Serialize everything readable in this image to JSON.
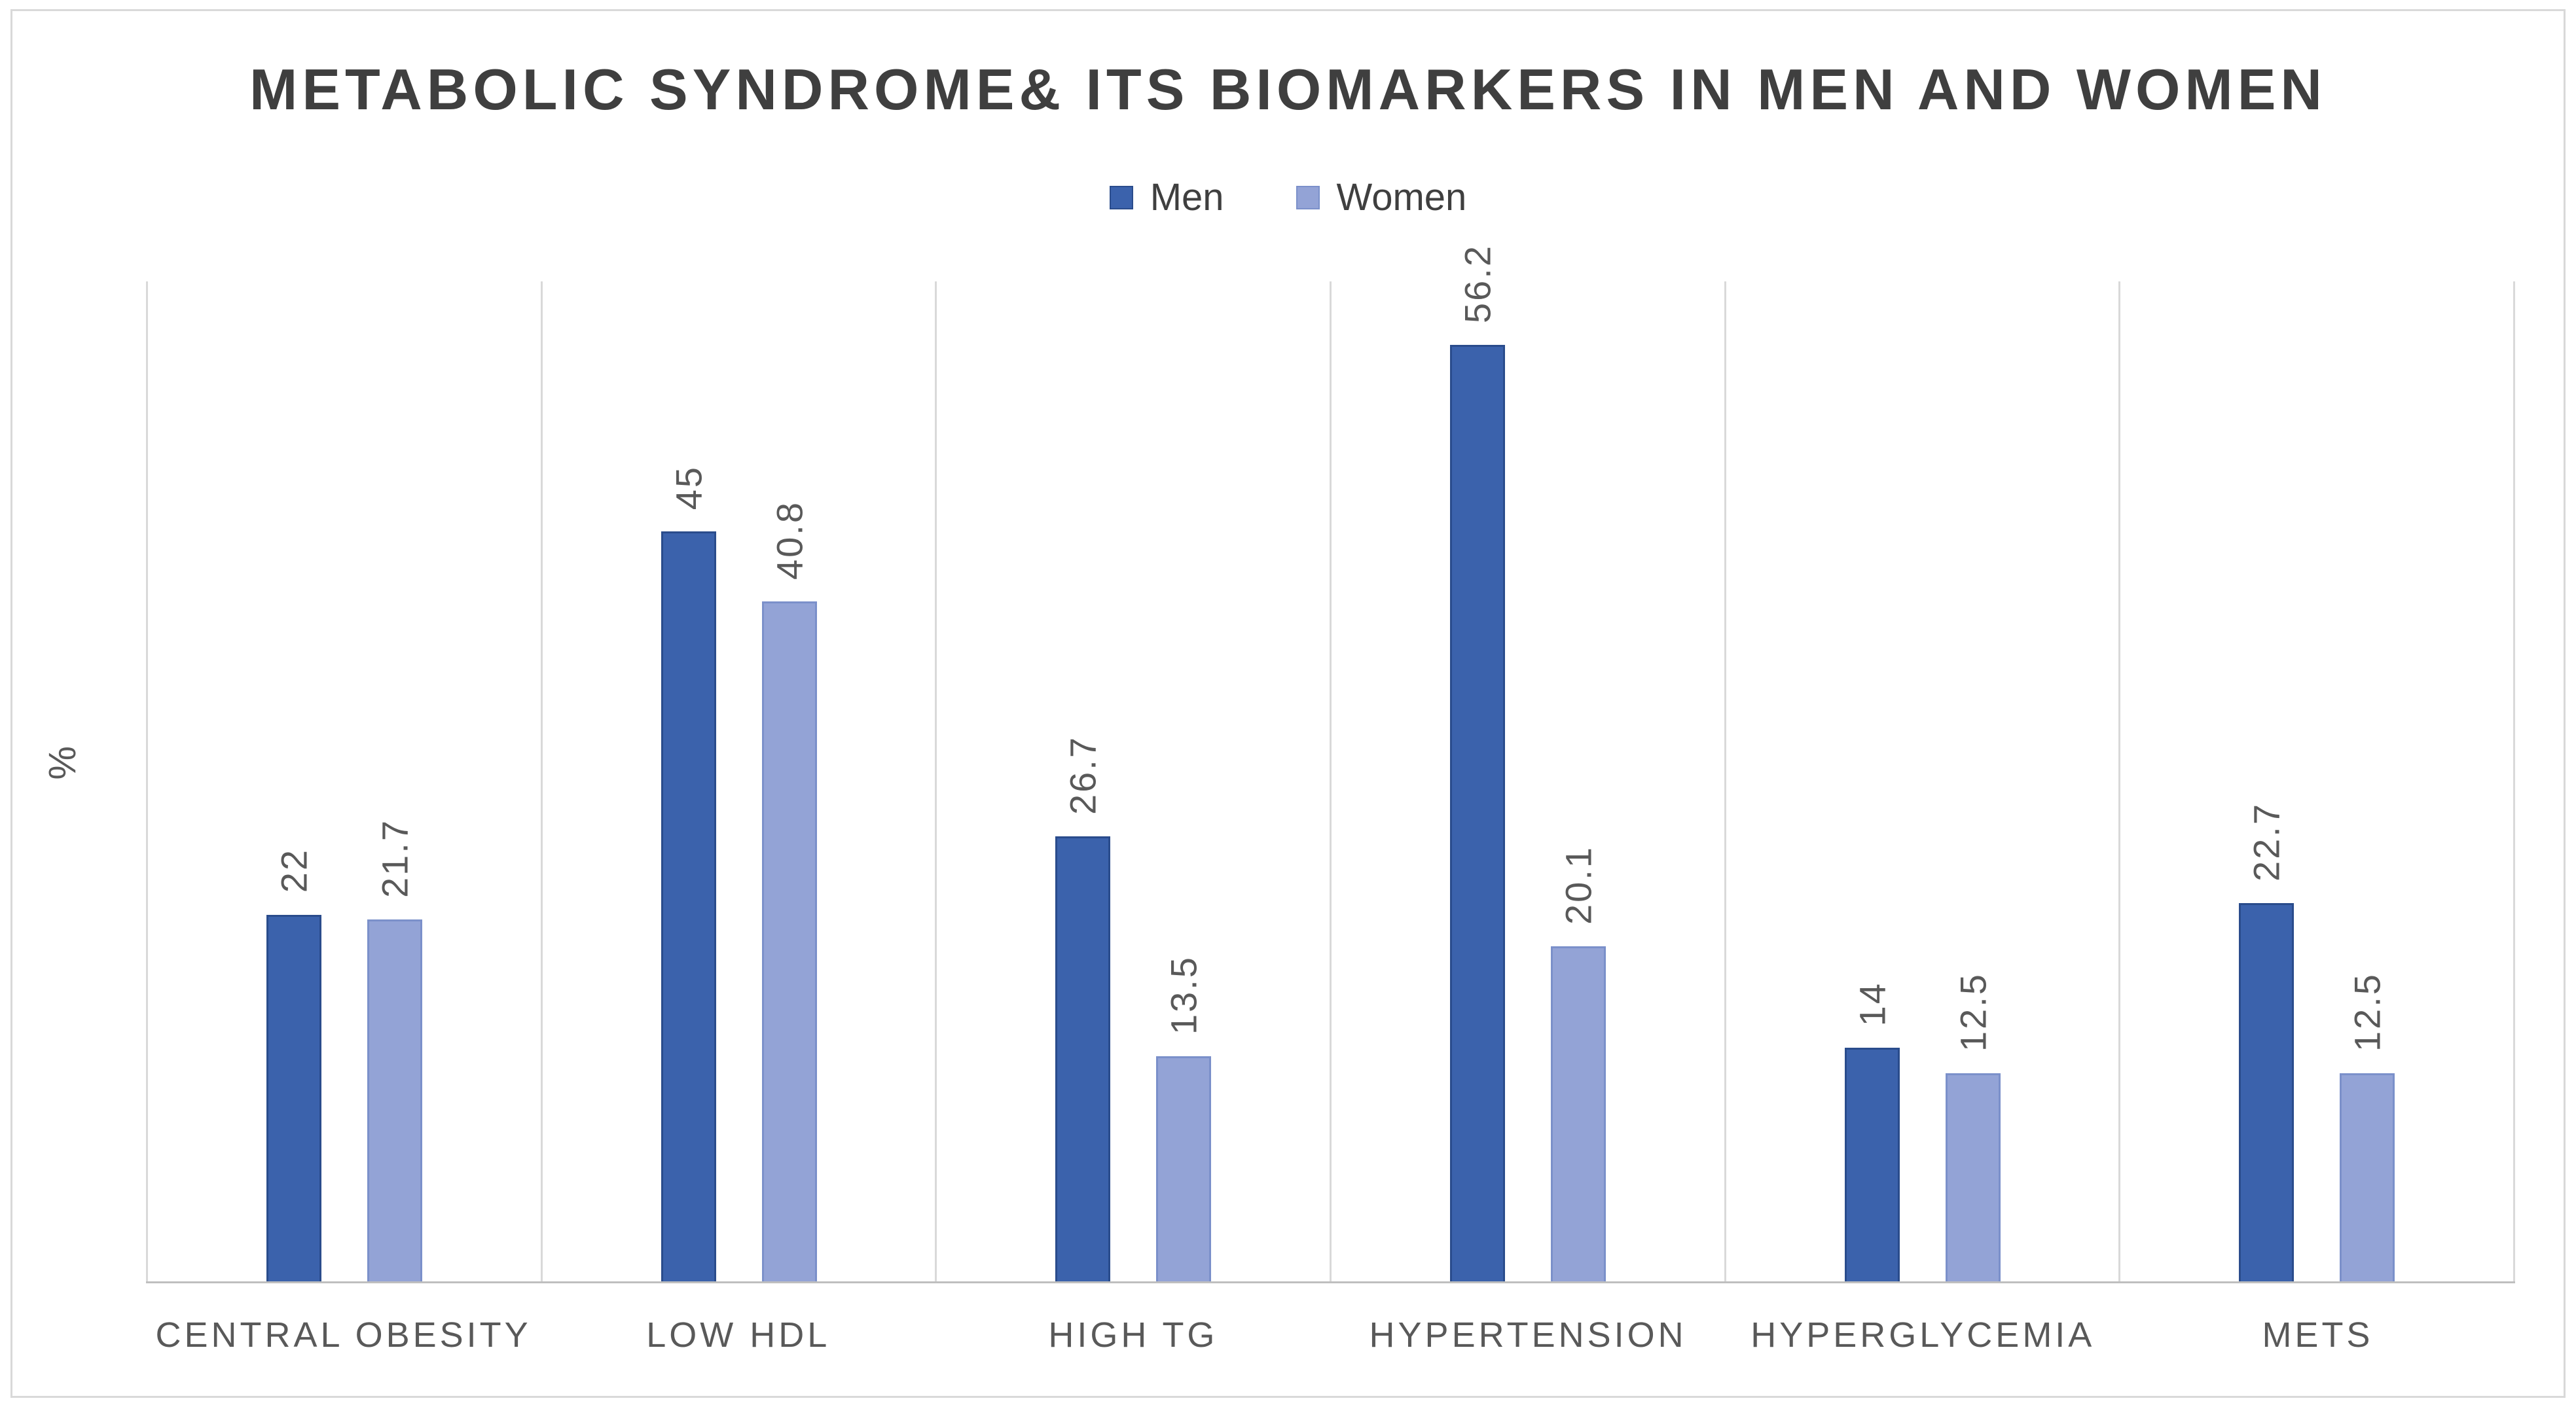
{
  "chart_data": {
    "type": "bar",
    "title": "METABOLIC SYNDROME& ITS BIOMARKERS IN MEN AND WOMEN",
    "xlabel": "",
    "ylabel": "%",
    "ylim": [
      0,
      60
    ],
    "y_axis_tick_labels_visible": false,
    "grid": "vertical category separators only",
    "legend_position": "top-center",
    "categories": [
      "CENTRAL OBESITY",
      "LOW HDL",
      "HIGH TG",
      "HYPERTENSION",
      "HYPERGLYCEMIA",
      "METS"
    ],
    "series": [
      {
        "name": "Men",
        "color": "#3B62AC",
        "border_color": "#2A4C8C",
        "values": [
          22,
          45,
          26.7,
          56.2,
          14,
          22.7
        ],
        "labels": [
          "22",
          "45",
          "26.7",
          "56.2",
          "14",
          "22.7"
        ]
      },
      {
        "name": "Women",
        "color": "#93A3D6",
        "border_color": "#7B90CA",
        "values": [
          21.7,
          40.8,
          13.5,
          20.1,
          12.5,
          12.5
        ],
        "labels": [
          "21.7",
          "40.8",
          "13.5",
          "20.1",
          "12.5",
          "12.5"
        ]
      }
    ],
    "data_label_rotation": "270deg (reads bottom to top)",
    "data_label_color": "#595959",
    "category_label_color": "#595959",
    "title_color": "#3F3F3F"
  }
}
